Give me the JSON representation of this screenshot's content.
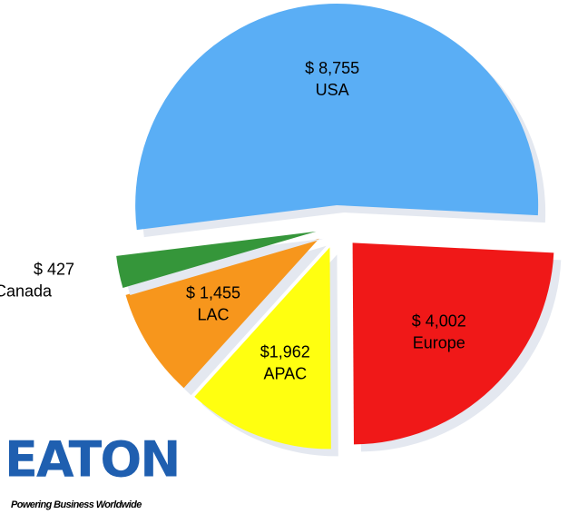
{
  "chart_data": {
    "type": "pie",
    "categories": [
      "USA",
      "Europe",
      "APAC",
      "LAC",
      "Canada"
    ],
    "values": [
      8755,
      4002,
      1962,
      1455,
      427
    ],
    "value_labels": [
      "$ 8,755",
      "$ 4,002",
      "$1,962",
      "$ 1,455",
      "$ 427"
    ],
    "colors": [
      "#5aaef5",
      "#f01818",
      "#ffff10",
      "#f7961c",
      "#35963a"
    ]
  },
  "logo": {
    "name": "EATON",
    "tagline": "Powering Business Worldwide"
  }
}
